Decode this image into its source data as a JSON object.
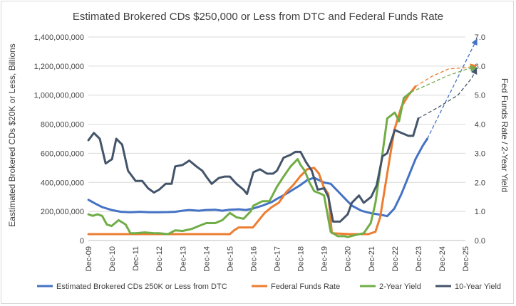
{
  "chart_data": {
    "type": "line",
    "title": "Estimated Brokered CDs $250,000 or Less from DTC and Federal Funds Rate",
    "ylabel_left": "Eastimated Brokered CDs $20K or Less, Billions",
    "ylabel_right": "Fed Funds Rate / 2-Year Yield",
    "ylim_left": [
      0,
      1400000000
    ],
    "ylim_right": [
      0,
      7
    ],
    "yticks_left": [
      "0",
      "200,000,000",
      "400,000,000",
      "600,000,000",
      "800,000,000",
      "1,000,000,000",
      "1,200,000,000",
      "1,400,000,000"
    ],
    "yticks_right": [
      "0.0",
      "1.0",
      "2.0",
      "3.0",
      "4.0",
      "5.0",
      "6.0",
      "7.0"
    ],
    "x_tick_labels": [
      "Dec-09",
      "Dec-10",
      "Dec-11",
      "Dec-12",
      "Dec-13",
      "Dec-14",
      "Dec-15",
      "Dec-16",
      "Dec-17",
      "Dec-18",
      "Dec-19",
      "Dec-20",
      "Dec-21",
      "Dec-22",
      "Dec-23",
      "Dec-24",
      "Dec-25"
    ],
    "x_range": [
      2009.917,
      2025.917
    ],
    "legend_position": "bottom",
    "series": [
      {
        "name": "Estimated Brokered CDs 250K or Less from DTC",
        "color": "#4472c4",
        "axis": "left",
        "points": [
          [
            2009.92,
            280000000
          ],
          [
            2010.2,
            255000000
          ],
          [
            2010.5,
            230000000
          ],
          [
            2010.9,
            210000000
          ],
          [
            2011.3,
            198000000
          ],
          [
            2011.7,
            195000000
          ],
          [
            2012.1,
            198000000
          ],
          [
            2012.5,
            195000000
          ],
          [
            2012.9,
            195000000
          ],
          [
            2013.3,
            196000000
          ],
          [
            2013.6,
            198000000
          ],
          [
            2013.9,
            205000000
          ],
          [
            2014.2,
            210000000
          ],
          [
            2014.6,
            205000000
          ],
          [
            2014.9,
            210000000
          ],
          [
            2015.3,
            212000000
          ],
          [
            2015.6,
            205000000
          ],
          [
            2015.9,
            212000000
          ],
          [
            2016.3,
            215000000
          ],
          [
            2016.6,
            210000000
          ],
          [
            2016.9,
            220000000
          ],
          [
            2017.3,
            240000000
          ],
          [
            2017.7,
            265000000
          ],
          [
            2017.9,
            285000000
          ],
          [
            2018.3,
            320000000
          ],
          [
            2018.6,
            350000000
          ],
          [
            2018.9,
            380000000
          ],
          [
            2019.2,
            415000000
          ],
          [
            2019.5,
            432000000
          ],
          [
            2019.9,
            400000000
          ],
          [
            2020.2,
            390000000
          ],
          [
            2020.5,
            340000000
          ],
          [
            2020.8,
            290000000
          ],
          [
            2021.1,
            240000000
          ],
          [
            2021.5,
            205000000
          ],
          [
            2021.9,
            188000000
          ],
          [
            2022.3,
            178000000
          ],
          [
            2022.6,
            168000000
          ],
          [
            2022.9,
            220000000
          ],
          [
            2023.2,
            320000000
          ],
          [
            2023.5,
            440000000
          ],
          [
            2023.8,
            560000000
          ],
          [
            2024.1,
            650000000
          ],
          [
            2024.3,
            700000000
          ]
        ],
        "forecast": [
          [
            2024.3,
            700000000
          ],
          [
            2026.42,
            1390000000
          ]
        ]
      },
      {
        "name": "Federal Funds Rate",
        "color": "#ed7d31",
        "axis": "right",
        "points": [
          [
            2009.92,
            0.22
          ],
          [
            2011,
            0.22
          ],
          [
            2012,
            0.22
          ],
          [
            2013,
            0.22
          ],
          [
            2014,
            0.22
          ],
          [
            2015,
            0.22
          ],
          [
            2015.92,
            0.22
          ],
          [
            2016.1,
            0.35
          ],
          [
            2016.3,
            0.45
          ],
          [
            2016.9,
            0.45
          ],
          [
            2017.1,
            0.65
          ],
          [
            2017.4,
            0.95
          ],
          [
            2017.7,
            1.15
          ],
          [
            2018.0,
            1.3
          ],
          [
            2018.3,
            1.65
          ],
          [
            2018.6,
            1.9
          ],
          [
            2018.9,
            2.2
          ],
          [
            2019.2,
            2.45
          ],
          [
            2019.5,
            2.5
          ],
          [
            2019.7,
            2.3
          ],
          [
            2019.9,
            1.85
          ],
          [
            2020.1,
            1.6
          ],
          [
            2020.25,
            0.25
          ],
          [
            2021,
            0.22
          ],
          [
            2021.8,
            0.22
          ],
          [
            2022.1,
            0.3
          ],
          [
            2022.3,
            0.8
          ],
          [
            2022.6,
            2.3
          ],
          [
            2022.9,
            3.8
          ],
          [
            2023.2,
            4.6
          ],
          [
            2023.5,
            5.0
          ],
          [
            2023.8,
            5.3
          ]
        ],
        "forecast": [
          [
            2023.8,
            5.3
          ],
          [
            2024.5,
            5.65
          ],
          [
            2025.2,
            5.9
          ],
          [
            2026.0,
            5.95
          ],
          [
            2026.4,
            6.03
          ]
        ]
      },
      {
        "name": "2-Year Yield",
        "color": "#70ad47",
        "axis": "right",
        "points": [
          [
            2009.92,
            0.9
          ],
          [
            2010.1,
            0.85
          ],
          [
            2010.3,
            0.9
          ],
          [
            2010.5,
            0.85
          ],
          [
            2010.7,
            0.55
          ],
          [
            2010.9,
            0.5
          ],
          [
            2011.2,
            0.7
          ],
          [
            2011.5,
            0.55
          ],
          [
            2011.7,
            0.25
          ],
          [
            2011.92,
            0.25
          ],
          [
            2012.3,
            0.28
          ],
          [
            2012.7,
            0.25
          ],
          [
            2012.92,
            0.25
          ],
          [
            2013.3,
            0.22
          ],
          [
            2013.6,
            0.35
          ],
          [
            2013.92,
            0.33
          ],
          [
            2014.3,
            0.4
          ],
          [
            2014.6,
            0.5
          ],
          [
            2014.92,
            0.6
          ],
          [
            2015.3,
            0.6
          ],
          [
            2015.6,
            0.7
          ],
          [
            2015.92,
            0.95
          ],
          [
            2016.2,
            0.8
          ],
          [
            2016.5,
            0.75
          ],
          [
            2016.8,
            1.0
          ],
          [
            2016.92,
            1.2
          ],
          [
            2017.3,
            1.35
          ],
          [
            2017.6,
            1.35
          ],
          [
            2017.92,
            1.85
          ],
          [
            2018.2,
            2.2
          ],
          [
            2018.5,
            2.55
          ],
          [
            2018.8,
            2.8
          ],
          [
            2018.92,
            2.6
          ],
          [
            2019.1,
            2.4
          ],
          [
            2019.3,
            2.0
          ],
          [
            2019.5,
            1.7
          ],
          [
            2019.8,
            1.6
          ],
          [
            2019.92,
            1.55
          ],
          [
            2020.2,
            0.3
          ],
          [
            2020.5,
            0.15
          ],
          [
            2020.8,
            0.15
          ],
          [
            2020.92,
            0.12
          ],
          [
            2021.3,
            0.2
          ],
          [
            2021.6,
            0.25
          ],
          [
            2021.9,
            0.6
          ],
          [
            2022.1,
            1.3
          ],
          [
            2022.4,
            3.0
          ],
          [
            2022.6,
            4.2
          ],
          [
            2022.92,
            4.4
          ],
          [
            2023.1,
            4.1
          ],
          [
            2023.3,
            4.9
          ],
          [
            2023.6,
            5.1
          ]
        ],
        "forecast": [
          [
            2023.6,
            5.1
          ],
          [
            2024.3,
            5.35
          ],
          [
            2025.1,
            5.65
          ],
          [
            2026.0,
            5.9
          ],
          [
            2026.4,
            5.95
          ]
        ]
      },
      {
        "name": "10-Year Yield",
        "color": "#44546a",
        "axis": "right",
        "points": [
          [
            2009.92,
            3.45
          ],
          [
            2010.15,
            3.7
          ],
          [
            2010.4,
            3.5
          ],
          [
            2010.65,
            2.65
          ],
          [
            2010.92,
            2.8
          ],
          [
            2011.1,
            3.5
          ],
          [
            2011.35,
            3.3
          ],
          [
            2011.6,
            2.4
          ],
          [
            2011.92,
            2.05
          ],
          [
            2012.2,
            2.05
          ],
          [
            2012.45,
            1.8
          ],
          [
            2012.7,
            1.65
          ],
          [
            2012.92,
            1.75
          ],
          [
            2013.2,
            1.95
          ],
          [
            2013.45,
            1.95
          ],
          [
            2013.6,
            2.55
          ],
          [
            2013.92,
            2.6
          ],
          [
            2014.2,
            2.75
          ],
          [
            2014.5,
            2.55
          ],
          [
            2014.75,
            2.4
          ],
          [
            2014.92,
            2.2
          ],
          [
            2015.15,
            1.95
          ],
          [
            2015.45,
            2.15
          ],
          [
            2015.7,
            2.2
          ],
          [
            2015.92,
            2.2
          ],
          [
            2016.2,
            1.95
          ],
          [
            2016.5,
            1.75
          ],
          [
            2016.65,
            1.6
          ],
          [
            2016.92,
            2.35
          ],
          [
            2017.2,
            2.45
          ],
          [
            2017.5,
            2.3
          ],
          [
            2017.75,
            2.3
          ],
          [
            2017.92,
            2.4
          ],
          [
            2018.2,
            2.85
          ],
          [
            2018.5,
            2.95
          ],
          [
            2018.7,
            3.05
          ],
          [
            2018.92,
            3.05
          ],
          [
            2019.15,
            2.7
          ],
          [
            2019.4,
            2.4
          ],
          [
            2019.65,
            1.75
          ],
          [
            2019.92,
            1.8
          ],
          [
            2020.1,
            1.5
          ],
          [
            2020.3,
            0.65
          ],
          [
            2020.6,
            0.65
          ],
          [
            2020.92,
            0.9
          ],
          [
            2021.1,
            1.3
          ],
          [
            2021.4,
            1.55
          ],
          [
            2021.6,
            1.3
          ],
          [
            2021.92,
            1.5
          ],
          [
            2022.15,
            1.9
          ],
          [
            2022.4,
            2.9
          ],
          [
            2022.6,
            3.0
          ],
          [
            2022.92,
            3.8
          ],
          [
            2023.2,
            3.7
          ],
          [
            2023.5,
            3.6
          ],
          [
            2023.7,
            3.6
          ],
          [
            2023.92,
            4.2
          ]
        ],
        "forecast": [
          [
            2023.92,
            4.2
          ],
          [
            2024.8,
            4.6
          ],
          [
            2025.6,
            5.0
          ],
          [
            2026.2,
            5.6
          ],
          [
            2026.4,
            5.95
          ]
        ]
      }
    ]
  }
}
